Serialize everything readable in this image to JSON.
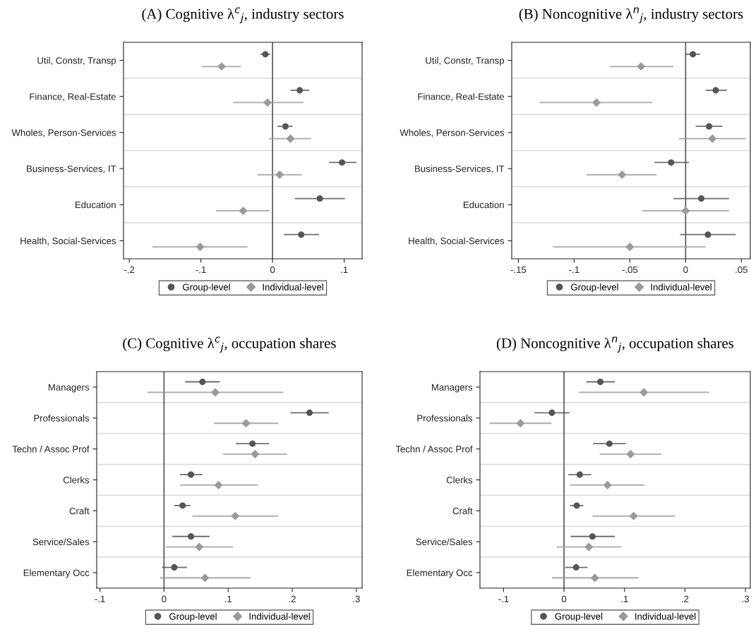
{
  "chart_data": [
    {
      "type": "scatter",
      "orientation": "horizontal",
      "title": "(A) Cognitive λ$^{c}$$_{j}$, industry sectors",
      "categories": [
        "Util, Constr, Transp",
        "Finance, Real-Estate",
        "Wholes, Person-Services",
        "Business-Services, IT",
        "Education",
        "Health, Social-Services"
      ],
      "series": [
        {
          "name": "Group-level",
          "color": "#555555",
          "marker": "circle",
          "values": [
            -0.01,
            0.038,
            0.018,
            0.097,
            0.066,
            0.04
          ],
          "errors": [
            [
              -0.017,
              -0.003
            ],
            [
              0.025,
              0.051
            ],
            [
              0.007,
              0.028
            ],
            [
              0.079,
              0.117
            ],
            [
              0.031,
              0.101
            ],
            [
              0.016,
              0.065
            ]
          ]
        },
        {
          "name": "Individual-level",
          "color": "#9a9a9a",
          "marker": "diamond",
          "values": [
            -0.071,
            -0.007,
            0.025,
            0.01,
            -0.041,
            -0.101
          ],
          "errors": [
            [
              -0.099,
              -0.044
            ],
            [
              -0.055,
              0.043
            ],
            [
              -0.005,
              0.054
            ],
            [
              -0.021,
              0.041
            ],
            [
              -0.079,
              -0.004
            ],
            [
              -0.168,
              -0.035
            ]
          ]
        }
      ],
      "xlim": [
        -0.208,
        0.125
      ],
      "xticks": [
        {
          "value": -0.2,
          "label": "-.2"
        },
        {
          "value": -0.1,
          "label": "-.1"
        },
        0,
        {
          "value": 0.1,
          "label": ".1"
        }
      ],
      "ref_lines": [
        {
          "axis": "x",
          "value": 0,
          "color": "#555555"
        }
      ],
      "grid": "y",
      "legend": "bottom"
    },
    {
      "type": "scatter",
      "orientation": "horizontal",
      "title": "(B) Noncognitive λ$^{n}$$_{j}$, industry sectors",
      "categories": [
        "Util, Constr, Transp",
        "Finance, Real-Estate",
        "Wholes, Person-Services",
        "Business-Services, IT",
        "Education",
        "Health, Social-Services"
      ],
      "series": [
        {
          "name": "Group-level",
          "color": "#555555",
          "marker": "circle",
          "values": [
            0.0065,
            0.027,
            0.021,
            -0.013,
            0.014,
            0.02
          ],
          "errors": [
            [
              0.0,
              0.013
            ],
            [
              0.018,
              0.037
            ],
            [
              0.009,
              0.033
            ],
            [
              -0.028,
              0.003
            ],
            [
              -0.011,
              0.039
            ],
            [
              -0.005,
              0.045
            ]
          ]
        },
        {
          "name": "Individual-level",
          "color": "#9a9a9a",
          "marker": "diamond",
          "values": [
            -0.04,
            -0.08,
            0.024,
            -0.057,
            0.0,
            -0.05
          ],
          "errors": [
            [
              -0.068,
              -0.011
            ],
            [
              -0.131,
              -0.03
            ],
            [
              -0.006,
              0.054
            ],
            [
              -0.089,
              -0.026
            ],
            [
              -0.039,
              0.039
            ],
            [
              -0.119,
              0.018
            ]
          ]
        }
      ],
      "xlim": [
        -0.156,
        0.058
      ],
      "xticks": [
        {
          "value": -0.15,
          "label": "-.15"
        },
        {
          "value": -0.1,
          "label": "-.1"
        },
        {
          "value": -0.05,
          "label": "-.05"
        },
        0,
        {
          "value": 0.05,
          "label": ".05"
        }
      ],
      "ref_lines": [
        {
          "axis": "x",
          "value": 0,
          "color": "#555555"
        }
      ],
      "grid": "y",
      "legend": "bottom"
    },
    {
      "type": "scatter",
      "orientation": "horizontal",
      "title": "(C) Cognitive λ$^{c}$$_{j}$, occupation shares",
      "categories": [
        "Managers",
        "Professionals",
        "Techn / Assoc Prof",
        "Clerks",
        "Craft",
        "Service/Sales",
        "Elementary Occ"
      ],
      "series": [
        {
          "name": "Group-level",
          "color": "#555555",
          "marker": "circle",
          "values": [
            0.06,
            0.227,
            0.138,
            0.042,
            0.029,
            0.042,
            0.016
          ],
          "errors": [
            [
              0.033,
              0.087
            ],
            [
              0.197,
              0.257
            ],
            [
              0.112,
              0.164
            ],
            [
              0.025,
              0.06
            ],
            [
              0.016,
              0.041
            ],
            [
              0.013,
              0.071
            ],
            [
              -0.003,
              0.036
            ]
          ]
        },
        {
          "name": "Individual-level",
          "color": "#9a9a9a",
          "marker": "diamond",
          "values": [
            0.08,
            0.128,
            0.142,
            0.085,
            0.111,
            0.055,
            0.064
          ],
          "errors": [
            [
              -0.026,
              0.186
            ],
            [
              0.078,
              0.178
            ],
            [
              0.092,
              0.192
            ],
            [
              0.025,
              0.146
            ],
            [
              0.044,
              0.178
            ],
            [
              0.003,
              0.108
            ],
            [
              -0.006,
              0.135
            ]
          ]
        }
      ],
      "xlim": [
        -0.105,
        0.309
      ],
      "xticks": [
        {
          "value": -0.1,
          "label": "-.1"
        },
        0,
        {
          "value": 0.1,
          "label": ".1"
        },
        {
          "value": 0.2,
          "label": ".2"
        },
        {
          "value": 0.3,
          "label": ".3"
        }
      ],
      "ref_lines": [
        {
          "axis": "x",
          "value": 0,
          "color": "#555555"
        }
      ],
      "grid": "y",
      "legend": "bottom"
    },
    {
      "type": "scatter",
      "orientation": "horizontal",
      "title": "(D) Noncognitive λ$^{n}$$_{j}$, occupation shares",
      "categories": [
        "Managers",
        "Professionals",
        "Techn / Assoc Prof",
        "Clerks",
        "Craft",
        "Service/Sales",
        "Elementary Occ"
      ],
      "series": [
        {
          "name": "Group-level",
          "color": "#555555",
          "marker": "circle",
          "values": [
            0.06,
            -0.02,
            0.075,
            0.026,
            0.021,
            0.047,
            0.02
          ],
          "errors": [
            [
              0.037,
              0.084
            ],
            [
              -0.049,
              0.009
            ],
            [
              0.048,
              0.102
            ],
            [
              0.007,
              0.045
            ],
            [
              0.01,
              0.032
            ],
            [
              0.011,
              0.084
            ],
            [
              0.002,
              0.039
            ]
          ]
        },
        {
          "name": "Individual-level",
          "color": "#9a9a9a",
          "marker": "diamond",
          "values": [
            0.132,
            -0.072,
            0.11,
            0.072,
            0.115,
            0.041,
            0.051
          ],
          "errors": [
            [
              0.024,
              0.24
            ],
            [
              -0.123,
              -0.021
            ],
            [
              0.059,
              0.161
            ],
            [
              0.01,
              0.133
            ],
            [
              0.047,
              0.184
            ],
            [
              -0.012,
              0.095
            ],
            [
              -0.02,
              0.123
            ]
          ]
        }
      ],
      "xlim": [
        -0.139,
        0.308
      ],
      "xticks": [
        {
          "value": -0.1,
          "label": "-.1"
        },
        0,
        {
          "value": 0.1,
          "label": ".1"
        },
        {
          "value": 0.2,
          "label": ".2"
        },
        {
          "value": 0.3,
          "label": ".3"
        }
      ],
      "ref_lines": [
        {
          "axis": "x",
          "value": 0,
          "color": "#555555"
        }
      ],
      "grid": "y",
      "legend": "bottom"
    }
  ]
}
